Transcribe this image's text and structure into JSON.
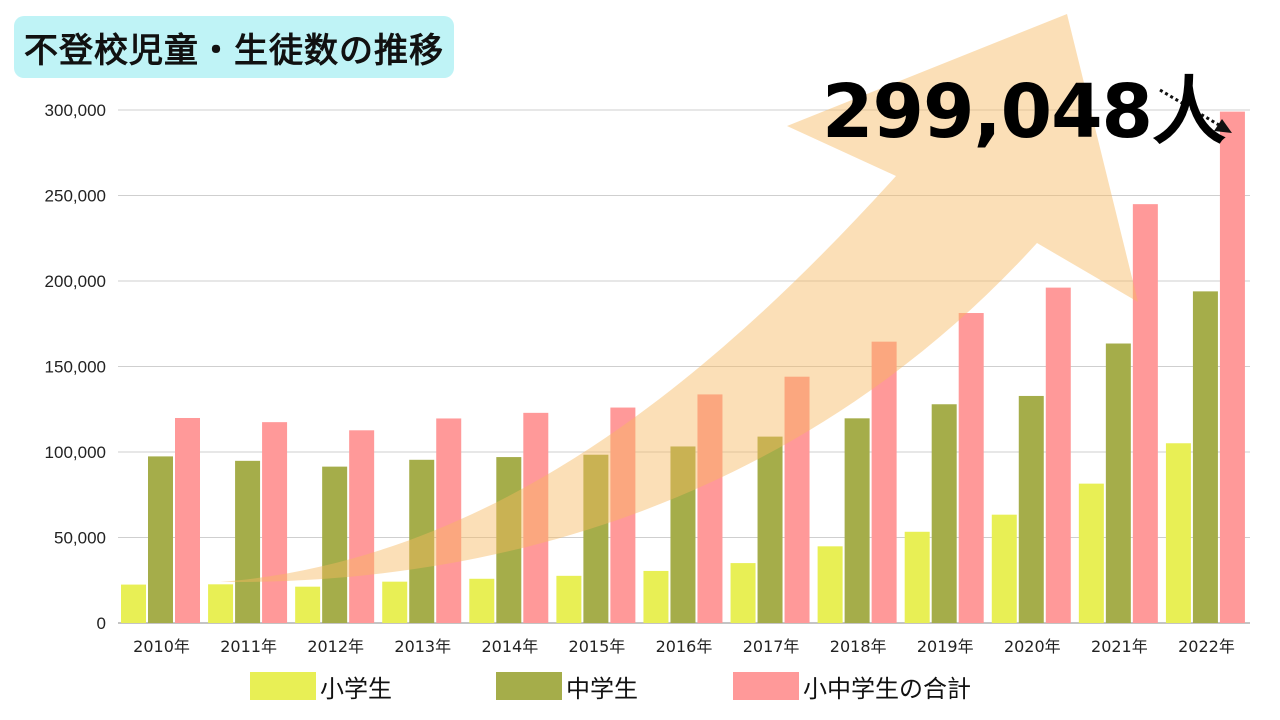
{
  "title": "不登校児童・生徒数の推移",
  "annotation": "299,048人",
  "colors": {
    "elementary": "#e8ef55",
    "junior": "#a5ad4a",
    "total": "#ff9999",
    "arrow": "#f7b860",
    "title_bg": "#bff3f6"
  },
  "chart_data": {
    "type": "bar",
    "title": "不登校児童・生徒数の推移",
    "xlabel": "",
    "ylabel": "",
    "ylim": [
      0,
      300000
    ],
    "yticks": [
      "0",
      "50,000",
      "100,000",
      "150,000",
      "200,000",
      "250,000",
      "300,000"
    ],
    "grid": true,
    "legend_position": "bottom",
    "categories": [
      "2010年",
      "2011年",
      "2012年",
      "2013年",
      "2014年",
      "2015年",
      "2016年",
      "2017年",
      "2018年",
      "2019年",
      "2020年",
      "2021年",
      "2022年"
    ],
    "series": [
      {
        "name": "小学生",
        "color": "#e8ef55",
        "values": [
          22463,
          22622,
          21243,
          24175,
          25864,
          27583,
          30448,
          35032,
          44841,
          53350,
          63350,
          81498,
          105112
        ]
      },
      {
        "name": "中学生",
        "color": "#a5ad4a",
        "values": [
          97428,
          94836,
          91446,
          95442,
          97033,
          98408,
          103235,
          108999,
          119687,
          127922,
          132777,
          163442,
          193936
        ]
      },
      {
        "name": "小中学生の合計",
        "color": "#ff9999",
        "values": [
          119891,
          117458,
          112689,
          119617,
          122897,
          125991,
          133683,
          144031,
          164528,
          181272,
          196127,
          244940,
          299048
        ]
      }
    ],
    "annotations": [
      "299,048人"
    ]
  }
}
